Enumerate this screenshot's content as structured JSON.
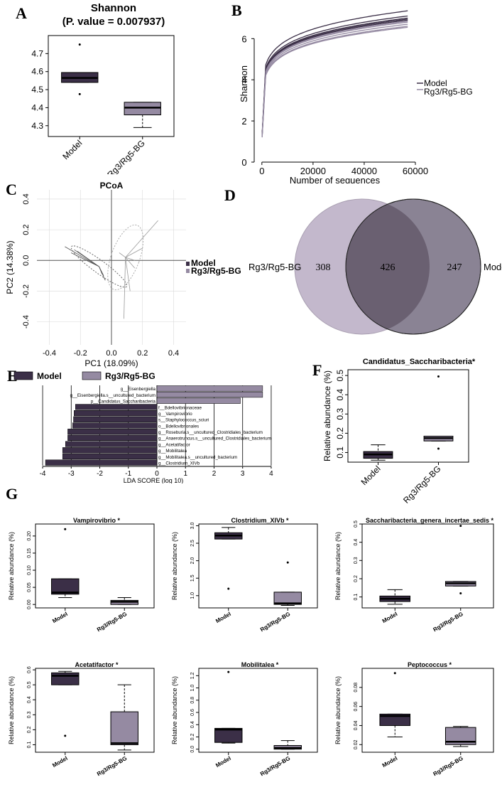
{
  "colors": {
    "model": "#3b2f47",
    "treat": "#958aa2",
    "venn_left": "#c3b8cc",
    "venn_right": "#8a8394",
    "venn_overlap": "#6a6071",
    "frame": "#000000",
    "grid": "#d9d9d9"
  },
  "panel_labels": [
    "A",
    "B",
    "C",
    "D",
    "E",
    "F",
    "G"
  ],
  "chart_data": [
    {
      "id": "A",
      "type": "boxplot",
      "title": "Shannon",
      "subtitle": "(P. value = 0.007937)",
      "categories": [
        "Model",
        "Rg3/Rg5-BG"
      ],
      "ylim": [
        4.24,
        4.8
      ],
      "yticks": [
        4.3,
        4.4,
        4.5,
        4.6,
        4.7
      ],
      "yticklabels": [
        "4.3",
        "4.4",
        "4.5",
        "4.6",
        "4.7"
      ],
      "boxes": [
        {
          "q1": 4.54,
          "median": 4.565,
          "q3": 4.595,
          "wlo": 4.54,
          "whi": 4.595,
          "outliers": [
            4.75,
            4.475
          ]
        },
        {
          "q1": 4.36,
          "median": 4.4,
          "q3": 4.43,
          "wlo": 4.29,
          "whi": 4.43,
          "outliers": []
        }
      ]
    },
    {
      "id": "B",
      "type": "line",
      "title": "",
      "xlabel": "Number of sequences",
      "ylabel": "Shannon",
      "xlim": [
        -3000,
        60000
      ],
      "ylim": [
        0,
        7.6
      ],
      "xticks": [
        0,
        20000,
        40000,
        60000
      ],
      "xticklabels": [
        "0",
        "20000",
        "40000",
        "60000"
      ],
      "yticks": [
        0,
        2,
        4,
        6
      ],
      "yticklabels": [
        "0",
        "2",
        "4",
        "6"
      ],
      "legend": [
        "Model",
        "Rg3/Rg5-BG"
      ],
      "x_end": 57000,
      "series": [
        {
          "name": "Model",
          "final_values": [
            7.35,
            7.1,
            7.0,
            6.95,
            6.9
          ]
        },
        {
          "name": "Rg3/Rg5-BG",
          "final_values": [
            6.85,
            6.8,
            6.7,
            6.6,
            6.55
          ]
        }
      ]
    },
    {
      "id": "C",
      "type": "scatter",
      "title": "PCoA",
      "xlabel": "PC1 (18.09%)",
      "ylabel": "PC2 (14.38%)",
      "xlim": [
        -0.48,
        0.48
      ],
      "ylim": [
        -0.55,
        0.46
      ],
      "xticks": [
        -0.4,
        -0.2,
        0.0,
        0.2,
        0.4
      ],
      "xticklabels": [
        "-0.4",
        "-0.2",
        "0.0",
        "0.2",
        "0.4"
      ],
      "yticks": [
        -0.4,
        -0.2,
        0.0,
        0.2,
        0.4
      ],
      "yticklabels": [
        "-0.4",
        "-0.2",
        "0.0",
        "0.2",
        "0.4"
      ],
      "legend": [
        "Model",
        "Rg3/Rg5-BG"
      ],
      "groups": [
        {
          "name": "Model",
          "center": [
            -0.08,
            -0.04
          ],
          "points": [
            [
              -0.3,
              0.09
            ],
            [
              -0.26,
              0.05
            ],
            [
              -0.24,
              0.07
            ],
            [
              -0.22,
              0.06
            ],
            [
              -0.05,
              -0.1
            ],
            [
              -0.04,
              -0.13
            ],
            [
              -0.06,
              -0.09
            ]
          ]
        },
        {
          "name": "Rg3/Rg5-BG",
          "center": [
            0.09,
            0.02
          ],
          "points": [
            [
              0.3,
              0.26
            ],
            [
              0.2,
              0.08
            ],
            [
              0.08,
              -0.38
            ],
            [
              0.12,
              -0.2
            ],
            [
              0.15,
              0.0
            ],
            [
              0.05,
              0.05
            ],
            [
              0.15,
              -0.05
            ]
          ]
        }
      ]
    },
    {
      "id": "D",
      "type": "venn",
      "sets": [
        "Rg3/Rg5-BG",
        "Model"
      ],
      "values": {
        "left_only": "308",
        "overlap": "426",
        "right_only": "247"
      }
    },
    {
      "id": "E",
      "type": "bar",
      "orientation": "horizontal",
      "xlabel": "LDA SCORE (log 10)",
      "xlim": [
        -4.2,
        4.2
      ],
      "xticks": [
        -4,
        -3,
        -2,
        -1,
        0,
        1,
        2,
        3,
        4
      ],
      "xticklabels": [
        "-4",
        "-3",
        "-2",
        "-1",
        "0",
        "1",
        "2",
        "3",
        "4"
      ],
      "legend": [
        "Model",
        "Rg3/Rg5-BG"
      ],
      "categories": [
        "g__Eisenbergiella",
        "g__Eisenbergiella.s__uncultured_bacterium",
        "p__Candidatus_Saccharibacteria",
        "f__Bdellovibrionaceae",
        "g__Vampirovibrio",
        "s__Staphylococcus_sciuri",
        "o__Bdellovibrionales",
        "g__Roseburia.s__uncultured_Clostridiales_bacterium",
        "g__Anaerotruncus.s__uncultured_Clostridiales_bacterium",
        "g__Acetatifactor",
        "g__Mobilitalea",
        "g__Mobilitalea.s__uncultured_bacterium",
        "g__Clostridium_XIVb"
      ],
      "values": [
        3.7,
        3.7,
        2.92,
        -2.85,
        -2.9,
        -2.92,
        -2.95,
        -3.12,
        -3.12,
        -3.2,
        -3.3,
        -3.3,
        -3.9
      ]
    },
    {
      "id": "F",
      "type": "boxplot",
      "title": "Candidatus_Saccharibacteria*",
      "ylabel": "Relative abundance (%)",
      "categories": [
        "Model",
        "Rg3/Rg5-BG"
      ],
      "ylim": [
        0.05,
        0.53
      ],
      "yticks": [
        0.1,
        0.2,
        0.3,
        0.4,
        0.5
      ],
      "yticklabels": [
        "0.1",
        "0.2",
        "0.3",
        "0.4",
        "0.5"
      ],
      "boxes": [
        {
          "q1": 0.07,
          "median": 0.09,
          "q3": 0.105,
          "wlo": 0.06,
          "whi": 0.14,
          "outliers": []
        },
        {
          "q1": 0.16,
          "median": 0.175,
          "q3": 0.185,
          "wlo": 0.16,
          "whi": 0.185,
          "outliers": [
            0.495,
            0.12
          ]
        }
      ]
    },
    {
      "id": "G1",
      "type": "boxplot",
      "title": "Vampirovibrio *",
      "ylabel": "Relative abundance (%)",
      "categories": [
        "Model",
        "Rg3/Rg5-BG"
      ],
      "ylim": [
        -0.01,
        0.235
      ],
      "yticks": [
        0.0,
        0.05,
        0.1,
        0.15,
        0.2
      ],
      "yticklabels": [
        "0.00",
        "0.05",
        "0.10",
        "0.15",
        "0.20"
      ],
      "boxes": [
        {
          "q1": 0.03,
          "median": 0.035,
          "q3": 0.075,
          "wlo": 0.02,
          "whi": 0.075,
          "outliers": [
            0.22
          ]
        },
        {
          "q1": 0.0,
          "median": 0.008,
          "q3": 0.012,
          "wlo": 0.0,
          "whi": 0.02,
          "outliers": []
        }
      ]
    },
    {
      "id": "G2",
      "type": "boxplot",
      "title": "Clostridium_XIVb *",
      "ylabel": "Relative abundance (%)",
      "categories": [
        "Model",
        "Rg3/Rg5-BG"
      ],
      "ylim": [
        0.65,
        3.05
      ],
      "yticks": [
        1.0,
        1.5,
        2.0,
        2.5,
        3.0
      ],
      "yticklabels": [
        "1.0",
        "1.5",
        "2.0",
        "2.5",
        "3.0"
      ],
      "boxes": [
        {
          "q1": 2.62,
          "median": 2.72,
          "q3": 2.8,
          "wlo": 2.62,
          "whi": 2.95,
          "outliers": [
            1.2
          ]
        },
        {
          "q1": 0.75,
          "median": 0.78,
          "q3": 1.1,
          "wlo": 0.72,
          "whi": 1.1,
          "outliers": [
            1.95
          ]
        }
      ]
    },
    {
      "id": "G3",
      "type": "boxplot",
      "title": "Saccharibacteria_genera_incertae_sedis *",
      "ylabel": "Relative abundance (%)",
      "categories": [
        "Model",
        "Rg3/Rg5-BG"
      ],
      "ylim": [
        0.04,
        0.5
      ],
      "yticks": [
        0.1,
        0.2,
        0.3,
        0.4,
        0.5
      ],
      "yticklabels": [
        "0.1",
        "0.2",
        "0.3",
        "0.4",
        "0.5"
      ],
      "boxes": [
        {
          "q1": 0.075,
          "median": 0.09,
          "q3": 0.105,
          "wlo": 0.06,
          "whi": 0.14,
          "outliers": []
        },
        {
          "q1": 0.16,
          "median": 0.175,
          "q3": 0.185,
          "wlo": 0.16,
          "whi": 0.185,
          "outliers": [
            0.49,
            0.12
          ]
        }
      ]
    },
    {
      "id": "G4",
      "type": "boxplot",
      "title": "Acetatifactor *",
      "ylabel": "Relative abundance (%)",
      "categories": [
        "Model",
        "Rg3/Rg5-BG"
      ],
      "ylim": [
        0.05,
        0.61
      ],
      "yticks": [
        0.1,
        0.2,
        0.3,
        0.4,
        0.5,
        0.6
      ],
      "yticklabels": [
        "0.1",
        "0.2",
        "0.3",
        "0.4",
        "0.5",
        "0.6"
      ],
      "boxes": [
        {
          "q1": 0.5,
          "median": 0.56,
          "q3": 0.58,
          "wlo": 0.5,
          "whi": 0.59,
          "outliers": [
            0.16
          ]
        },
        {
          "q1": 0.1,
          "median": 0.11,
          "q3": 0.32,
          "wlo": 0.065,
          "whi": 0.5,
          "outliers": []
        }
      ]
    },
    {
      "id": "G5",
      "type": "boxplot",
      "title": "Mobilitalea *",
      "ylabel": "Relative abundance (%)",
      "categories": [
        "Model",
        "Rg3/Rg5-BG"
      ],
      "ylim": [
        -0.05,
        1.32
      ],
      "yticks": [
        0.0,
        0.2,
        0.4,
        0.6,
        0.8,
        1.0,
        1.2
      ],
      "yticklabels": [
        "0.0",
        "0.2",
        "0.4",
        "0.6",
        "0.8",
        "1.0",
        "1.2"
      ],
      "boxes": [
        {
          "q1": 0.11,
          "median": 0.32,
          "q3": 0.34,
          "wlo": 0.1,
          "whi": 0.34,
          "outliers": [
            1.26
          ]
        },
        {
          "q1": 0.0,
          "median": 0.02,
          "q3": 0.06,
          "wlo": 0.0,
          "whi": 0.14,
          "outliers": []
        }
      ]
    },
    {
      "id": "G6",
      "type": "boxplot",
      "title": "Peptococcus *",
      "ylabel": "Relative abundance (%)",
      "categories": [
        "Model",
        "Rg3/Rg5-BG"
      ],
      "ylim": [
        0.012,
        0.1
      ],
      "yticks": [
        0.02,
        0.04,
        0.06,
        0.08
      ],
      "yticklabels": [
        "0.02",
        "0.04",
        "0.06",
        "0.08"
      ],
      "boxes": [
        {
          "q1": 0.04,
          "median": 0.05,
          "q3": 0.052,
          "wlo": 0.028,
          "whi": 0.052,
          "outliers": [
            0.095
          ]
        },
        {
          "q1": 0.02,
          "median": 0.023,
          "q3": 0.038,
          "wlo": 0.018,
          "whi": 0.039,
          "outliers": []
        }
      ]
    }
  ]
}
